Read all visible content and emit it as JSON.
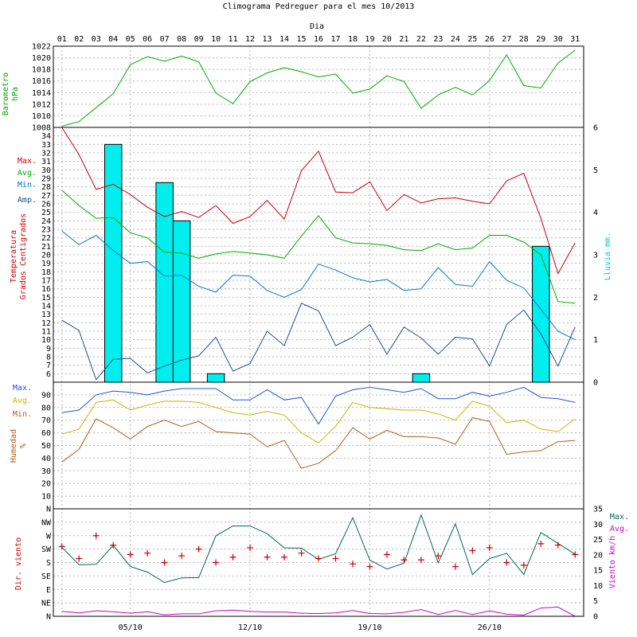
{
  "title": "Climograma Pedreguer para el mes 10/2013",
  "header_axis_label": "Dia",
  "day_labels": [
    "01",
    "02",
    "03",
    "04",
    "05",
    "06",
    "07",
    "08",
    "09",
    "10",
    "11",
    "12",
    "13",
    "14",
    "15",
    "16",
    "17",
    "18",
    "19",
    "20",
    "21",
    "22",
    "23",
    "24",
    "25",
    "26",
    "27",
    "28",
    "29",
    "30",
    "31"
  ],
  "date_labels": [
    "05/10",
    "12/10",
    "19/10",
    "26/10"
  ],
  "colors": {
    "max": "#cc0000",
    "avg": "#00aa00",
    "min": "#0077cc",
    "amp": "#1f4d8f",
    "rain": "#00eeee",
    "baro": "#00aa00",
    "hum_max": "#2255cc",
    "hum_avg": "#bbbb00",
    "hum_min": "#b85a1a",
    "wind_max": "#006655",
    "wind_avg": "#cc00cc",
    "wind_dir": "#cc0000"
  },
  "chart_data": [
    {
      "id": "barometer",
      "type": "line",
      "ylabel_lines": [
        "Barometro",
        "hPa"
      ],
      "ylim": [
        1008,
        1022
      ],
      "y_ticks": [
        1008,
        1010,
        1012,
        1014,
        1016,
        1018,
        1020,
        1022
      ],
      "x": [
        1,
        2,
        3,
        4,
        5,
        6,
        7,
        8,
        9,
        10,
        11,
        12,
        13,
        14,
        15,
        16,
        17,
        18,
        19,
        20,
        21,
        22,
        23,
        24,
        25,
        26,
        27,
        28,
        29,
        30,
        31
      ],
      "series": [
        {
          "key": "baro",
          "values": [
            1008.2,
            1009.0,
            1011.4,
            1013.8,
            1018.8,
            1020.2,
            1019.4,
            1020.3,
            1019.3,
            1013.9,
            1012.1,
            1015.9,
            1017.4,
            1018.3,
            1017.6,
            1016.7,
            1017.2,
            1013.9,
            1014.6,
            1016.9,
            1015.9,
            1011.3,
            1013.6,
            1014.9,
            1013.6,
            1016.1,
            1020.5,
            1015.2,
            1014.8,
            1019.1,
            1021.3
          ]
        }
      ]
    },
    {
      "id": "temperature",
      "type": "line+bar",
      "ylabel_lines": [
        "Temperatura",
        "Grados Centigrados"
      ],
      "ylim": [
        5,
        35
      ],
      "y_ticks": [
        6,
        7,
        8,
        9,
        10,
        11,
        12,
        13,
        14,
        15,
        16,
        17,
        18,
        19,
        20,
        21,
        22,
        23,
        24,
        25,
        26,
        27,
        28,
        29,
        30,
        31,
        32,
        33,
        34
      ],
      "legend": [
        "Max.",
        "Avg.",
        "Min.",
        "Amp."
      ],
      "x": [
        1,
        2,
        3,
        4,
        5,
        6,
        7,
        8,
        9,
        10,
        11,
        12,
        13,
        14,
        15,
        16,
        17,
        18,
        19,
        20,
        21,
        22,
        23,
        24,
        25,
        26,
        27,
        28,
        29,
        30,
        31
      ],
      "series": [
        {
          "name": "Max.",
          "key": "max",
          "values": [
            35.0,
            31.8,
            27.7,
            28.3,
            27.1,
            25.6,
            24.5,
            25.1,
            24.4,
            25.8,
            23.7,
            24.5,
            26.4,
            24.2,
            29.9,
            32.2,
            27.4,
            27.3,
            28.6,
            25.2,
            27.1,
            26.1,
            26.6,
            26.7,
            26.3,
            26.0,
            28.7,
            29.6,
            24.3,
            17.8,
            21.4
          ]
        },
        {
          "name": "Avg.",
          "key": "avg",
          "values": [
            27.6,
            25.8,
            24.3,
            24.4,
            22.6,
            22.0,
            20.3,
            20.2,
            19.6,
            20.1,
            20.4,
            20.2,
            20.0,
            19.6,
            22.2,
            24.6,
            22.0,
            21.4,
            21.3,
            21.1,
            20.6,
            20.5,
            21.3,
            20.6,
            20.8,
            22.3,
            22.3,
            21.5,
            20.0,
            14.5,
            14.3
          ]
        },
        {
          "name": "Min.",
          "key": "min",
          "values": [
            22.8,
            21.2,
            22.3,
            20.5,
            19.0,
            19.2,
            17.5,
            17.6,
            16.3,
            15.6,
            17.6,
            17.5,
            15.8,
            15.0,
            15.9,
            18.9,
            18.2,
            17.3,
            16.8,
            17.1,
            15.8,
            16.0,
            18.5,
            16.5,
            16.3,
            19.2,
            17.0,
            16.1,
            13.6,
            11.0,
            10.0
          ]
        },
        {
          "name": "Amp.",
          "key": "amp",
          "values": [
            12.3,
            11.1,
            5.3,
            7.7,
            7.8,
            6.1,
            6.9,
            7.6,
            8.1,
            10.3,
            6.3,
            7.2,
            11.0,
            9.3,
            14.3,
            13.4,
            9.3,
            10.3,
            11.8,
            8.3,
            11.5,
            10.2,
            8.3,
            10.3,
            10.1,
            6.9,
            11.8,
            13.5,
            10.7,
            6.9,
            11.5
          ]
        }
      ],
      "rain": {
        "ylabel": "Lluvia mm.",
        "ylim": [
          0,
          6
        ],
        "y_ticks": [
          0,
          1,
          2,
          3,
          4,
          5,
          6
        ],
        "x": [
          4,
          7,
          8,
          10,
          22,
          29
        ],
        "values": [
          5.6,
          4.7,
          3.8,
          0.2,
          0.2,
          3.2
        ]
      }
    },
    {
      "id": "humidity",
      "type": "line",
      "ylabel_lines": [
        "Humedad",
        "%"
      ],
      "ylim": [
        0,
        100
      ],
      "y_ticks": [
        10,
        20,
        30,
        40,
        50,
        60,
        70,
        80,
        90
      ],
      "legend": [
        "Max.",
        "Avg.",
        "Min."
      ],
      "x": [
        1,
        2,
        3,
        4,
        5,
        6,
        7,
        8,
        9,
        10,
        11,
        12,
        13,
        14,
        15,
        16,
        17,
        18,
        19,
        20,
        21,
        22,
        23,
        24,
        25,
        26,
        27,
        28,
        29,
        30,
        31
      ],
      "series": [
        {
          "name": "Max.",
          "key": "hum_max",
          "values": [
            76,
            78,
            90,
            93,
            92,
            90,
            93,
            95,
            95,
            95,
            86,
            86,
            94,
            86,
            88,
            67,
            89,
            94,
            96,
            94,
            92,
            95,
            87,
            87,
            92,
            89,
            92,
            96,
            88,
            87,
            84
          ]
        },
        {
          "name": "Avg.",
          "key": "hum_avg",
          "values": [
            59,
            63,
            84,
            86,
            78,
            82,
            85,
            85,
            84,
            80,
            76,
            74,
            77,
            74,
            60,
            52,
            65,
            84,
            80,
            79,
            78,
            78,
            75,
            70,
            85,
            81,
            68,
            70,
            63,
            61,
            71
          ]
        },
        {
          "name": "Min.",
          "key": "hum_min",
          "values": [
            37,
            47,
            71,
            64,
            55,
            65,
            70,
            65,
            69,
            61,
            60,
            59,
            49,
            54,
            32,
            36,
            46,
            64,
            55,
            62,
            57,
            57,
            56,
            51,
            72,
            69,
            43,
            45,
            46,
            53,
            54
          ]
        }
      ]
    },
    {
      "id": "wind",
      "type": "line+scatter",
      "ylabel": "Dir. viento",
      "direction_ticks": [
        "N",
        "NE",
        "E",
        "SE",
        "S",
        "SW",
        "W",
        "NW"
      ],
      "wind_ylabel": "Viento km/h",
      "wind_ylim": [
        0,
        35
      ],
      "wind_ticks": [
        0,
        5,
        10,
        15,
        20,
        25,
        30,
        35
      ],
      "legend": [
        "Max.",
        "Avg."
      ],
      "x": [
        1,
        2,
        3,
        4,
        5,
        6,
        7,
        8,
        9,
        10,
        11,
        12,
        13,
        14,
        15,
        16,
        17,
        18,
        19,
        20,
        21,
        22,
        23,
        24,
        25,
        26,
        27,
        28,
        29,
        30,
        31
      ],
      "series": [
        {
          "name": "Max.",
          "key": "wind_max",
          "values": [
            22.5,
            16.8,
            16.9,
            23.1,
            16.2,
            14.4,
            11.0,
            12.5,
            12.6,
            26.2,
            29.4,
            29.4,
            26.9,
            22.3,
            22.2,
            18.5,
            20.4,
            32.1,
            18.3,
            15.4,
            17.3,
            33.0,
            17.4,
            30.1,
            13.6,
            18.8,
            20.5,
            13.6,
            27.3,
            23.7,
            20.2
          ]
        },
        {
          "name": "Avg.",
          "key": "wind_avg",
          "values": [
            1.6,
            1.1,
            1.8,
            1.5,
            1.0,
            1.5,
            0.5,
            0.8,
            0.8,
            1.8,
            2.0,
            1.6,
            1.4,
            1.4,
            1.0,
            0.9,
            1.1,
            1.9,
            0.9,
            0.8,
            1.3,
            2.2,
            0.6,
            1.9,
            0.6,
            1.8,
            0.7,
            0.4,
            2.7,
            3.0,
            0.0
          ]
        }
      ],
      "direction_points": {
        "x": [
          1,
          2,
          3,
          4,
          5,
          6,
          7,
          8,
          9,
          10,
          11,
          12,
          13,
          14,
          15,
          16,
          17,
          18,
          19,
          20,
          21,
          22,
          23,
          24,
          25,
          26,
          27,
          28,
          29,
          30,
          31
        ],
        "values": [
          5.2,
          4.3,
          6.0,
          5.3,
          4.6,
          4.7,
          4.0,
          4.5,
          5.0,
          4.0,
          4.4,
          5.1,
          4.4,
          4.4,
          4.7,
          4.3,
          4.3,
          3.9,
          3.7,
          4.6,
          4.2,
          4.2,
          4.5,
          3.7,
          4.9,
          5.1,
          4.0,
          3.8,
          5.4,
          5.3,
          4.6
        ]
      }
    }
  ]
}
